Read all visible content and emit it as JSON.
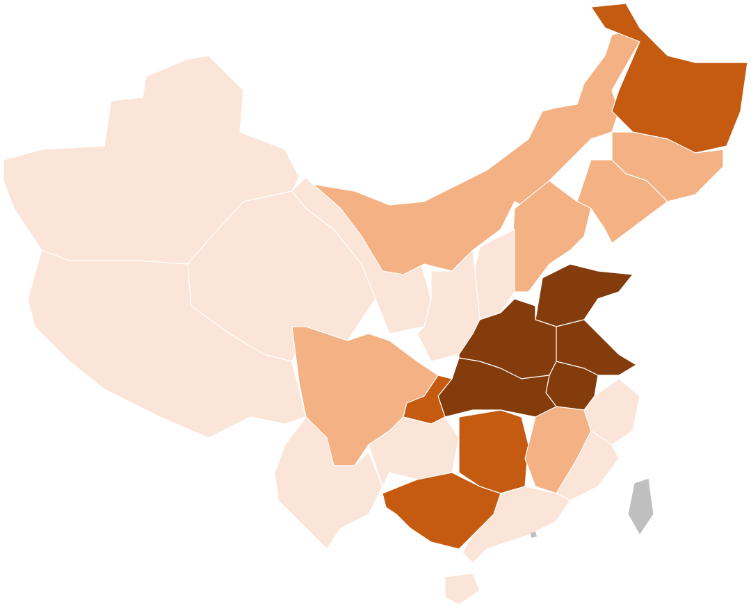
{
  "map": {
    "colors": {
      "level_1": "#FBE5D8",
      "level_2": "#F4B183",
      "level_3": "#C55A11",
      "level_4": "#843C0C",
      "no_data": "#BFBFBF"
    },
    "regions": {
      "xinjiang": "level_1",
      "tibet": "level_1",
      "qinghai": "level_1",
      "gansu": "level_1",
      "shaanxi": "level_1",
      "shanxi": "level_1",
      "yunnan": "level_1",
      "guizhou": "level_1",
      "zhejiang": "level_1",
      "fujian": "level_1",
      "guangdong": "level_1",
      "hainan": "level_1",
      "inner-mongolia": "level_2",
      "jilin": "level_2",
      "liaoning": "level_2",
      "hebei": "level_2",
      "sichuan": "level_2",
      "jiangxi": "level_2",
      "heilongjiang": "level_3",
      "chongqing": "level_3",
      "hunan": "level_3",
      "guangxi": "level_3",
      "shandong": "level_4",
      "henan": "level_4",
      "jiangsu": "level_4",
      "anhui": "level_4",
      "hubei": "level_4",
      "taiwan": "no_data",
      "hong-kong": "no_data"
    }
  }
}
